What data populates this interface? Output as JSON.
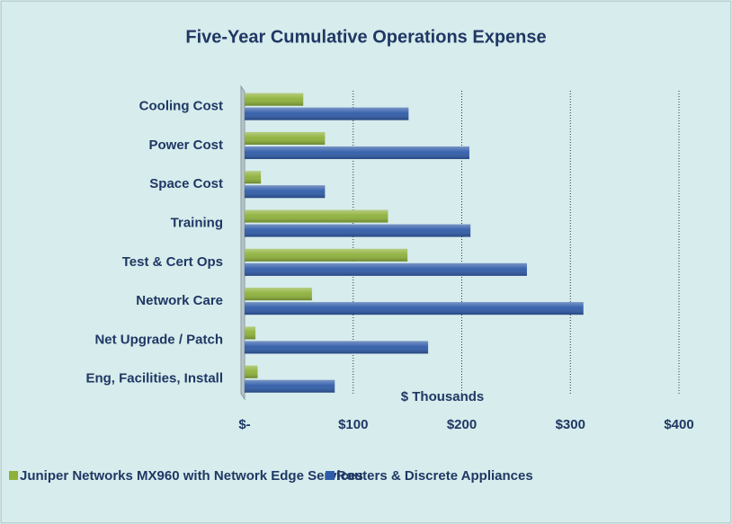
{
  "chart_data": {
    "type": "barh",
    "title": "Five-Year Cumulative Operations Expense",
    "x_label": "$ Thousands",
    "categories": [
      "Cooling Cost",
      "Power Cost",
      "Space Cost",
      "Training",
      "Test & Cert Ops",
      "Network Care",
      "Net Upgrade / Patch",
      "Eng, Facilities, Install"
    ],
    "series": [
      {
        "name": "Juniper Networks MX960 with Network Edge Services",
        "color": "#8db13a",
        "values": [
          54,
          74,
          15,
          132,
          150,
          62,
          10,
          12
        ]
      },
      {
        "name": "Routers & Discrete Appliances",
        "color": "#2f5ba8",
        "values": [
          151,
          207,
          74,
          208,
          260,
          312,
          169,
          83
        ]
      }
    ],
    "xlim": [
      0,
      400
    ],
    "xticks": [
      {
        "value": 0,
        "label": "$-"
      },
      {
        "value": 100,
        "label": "$100"
      },
      {
        "value": 200,
        "label": "$200"
      },
      {
        "value": 300,
        "label": "$300"
      },
      {
        "value": 400,
        "label": "$400"
      }
    ],
    "grid": true,
    "legend": "bottom"
  }
}
